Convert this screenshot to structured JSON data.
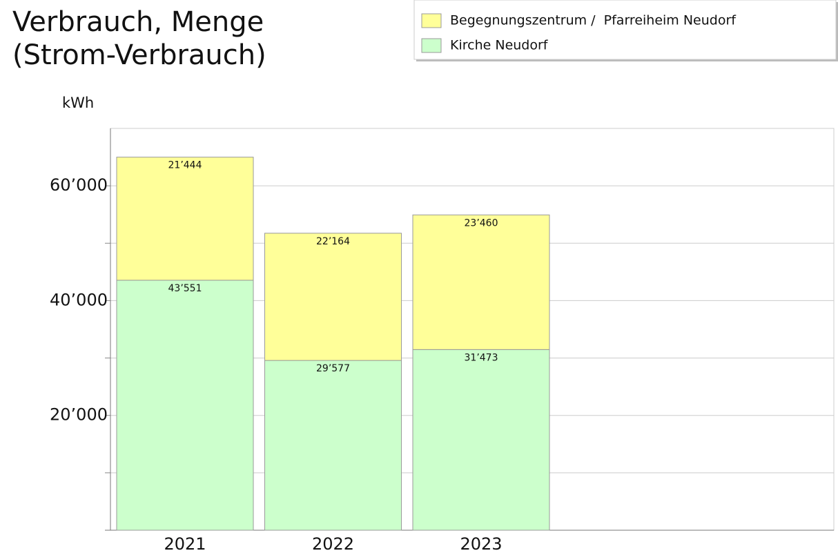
{
  "chart_data": {
    "type": "stacked_bar",
    "title": [
      "Verbrauch, Menge",
      "(Strom-Verbrauch)"
    ],
    "y_label": "kWh",
    "categories": [
      "2021",
      "2022",
      "2023"
    ],
    "series": [
      {
        "name": "Begegnungszentrum /  Pfarreiheim Neudorf",
        "color": "#ffff99",
        "values": [
          21444,
          22164,
          23460
        ],
        "value_labels": [
          "21’444",
          "22’164",
          "23’460"
        ]
      },
      {
        "name": "Kirche Neudorf",
        "color": "#ccffcc",
        "values": [
          43551,
          29577,
          31473
        ],
        "value_labels": [
          "43’551",
          "29’577",
          "31’473"
        ]
      }
    ],
    "ylim": [
      0,
      70000
    ],
    "yticks": [
      {
        "value": 20000,
        "label": "20’000"
      },
      {
        "value": 40000,
        "label": "40’000"
      },
      {
        "value": 60000,
        "label": "60’000"
      }
    ],
    "minor_grid": [
      10000,
      30000,
      50000
    ],
    "grid": true,
    "legend": "top-right"
  }
}
